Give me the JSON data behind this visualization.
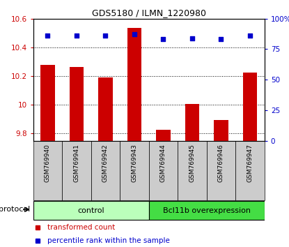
{
  "title": "GDS5180 / ILMN_1220980",
  "samples": [
    "GSM769940",
    "GSM769941",
    "GSM769942",
    "GSM769943",
    "GSM769944",
    "GSM769945",
    "GSM769946",
    "GSM769947"
  ],
  "transformed_counts": [
    10.28,
    10.265,
    10.19,
    10.535,
    9.825,
    10.005,
    9.895,
    10.225
  ],
  "percentile_ranks": [
    86,
    86,
    86,
    87,
    83,
    84,
    83,
    86
  ],
  "ylim_left": [
    9.75,
    10.6
  ],
  "ylim_right": [
    0,
    100
  ],
  "yticks_left": [
    9.8,
    10.0,
    10.2,
    10.4,
    10.6
  ],
  "ytick_labels_left": [
    "9.8",
    "10",
    "10.2",
    "10.4",
    "10.6"
  ],
  "yticks_right": [
    0,
    25,
    50,
    75,
    100
  ],
  "ytick_labels_right": [
    "0",
    "25",
    "50",
    "75",
    "100%"
  ],
  "bar_color": "#cc0000",
  "dot_color": "#0000cc",
  "bar_width": 0.5,
  "control_samples": 4,
  "control_label": "control",
  "treatment_label": "Bcl11b overexpression",
  "control_color": "#bbffbb",
  "treatment_color": "#44dd44",
  "legend_bar_label": "transformed count",
  "legend_dot_label": "percentile rank within the sample",
  "protocol_label": "protocol",
  "bg_xtick": "#cccccc"
}
